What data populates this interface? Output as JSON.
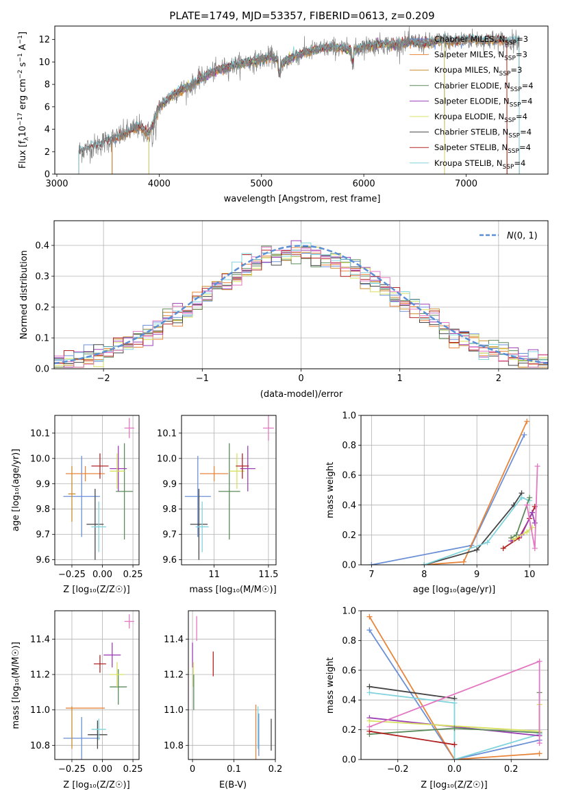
{
  "title": "PLATE=1749, MJD=53357, FIBERID=0613, z=0.209",
  "colors": {
    "chabrier_miles": "#6b8fd6",
    "salpeter_miles": "#e8843a",
    "kroupa_miles": "#c98a2a",
    "chabrier_elodie": "#5a8a5a",
    "salpeter_elodie": "#9b3fb5",
    "kroupa_elodie": "#d8e060",
    "chabrier_stelib": "#444444",
    "salpeter_stelib": "#b22222",
    "kroupa_stelib": "#7fd3dc",
    "pink": "#e377c2",
    "gauss": "#5a8fd6",
    "grid": "#b0b0b0"
  },
  "chart_data": [
    {
      "id": "spectrum",
      "type": "line",
      "xlabel": "wavelength [Angstrom, rest frame]",
      "ylabel": "Flux [f_λ 10^-17 erg cm^-2 s^-1 A^-1]",
      "xlim": [
        2980,
        7800
      ],
      "ylim": [
        0,
        13.2
      ],
      "xticks": [
        3000,
        4000,
        5000,
        6000,
        7000
      ],
      "yticks": [
        0,
        2,
        4,
        6,
        8,
        10,
        12
      ],
      "legend_position": "top-right",
      "legend": [
        "Chabrier MILES, N_SSP=3",
        "Salpeter MILES, N_SSP=3",
        "Kroupa MILES, N_SSP=3",
        "Chabrier ELODIE, N_SSP=4",
        "Salpeter ELODIE, N_SSP=4",
        "Kroupa ELODIE, N_SSP=4",
        "Chabrier STELIB, N_SSP=4",
        "Salpeter STELIB, N_SSP=4",
        "Kroupa STELIB, N_SSP=4"
      ],
      "data_continuum": {
        "x": [
          3200,
          3300,
          3400,
          3500,
          3600,
          3700,
          3800,
          3900,
          4000,
          4100,
          4200,
          4300,
          4400,
          4500,
          4600,
          4700,
          4800,
          4900,
          5000,
          5100,
          5200,
          5300,
          5400,
          5500,
          5600,
          5700,
          5800,
          5900,
          6000,
          6100,
          6200,
          6300,
          6400,
          6500,
          6600,
          6700,
          6800,
          6900,
          7000,
          7100,
          7200,
          7300,
          7400,
          7500
        ],
        "y": [
          2.0,
          2.3,
          2.6,
          3.0,
          3.3,
          3.8,
          4.2,
          3.6,
          6.0,
          6.8,
          7.5,
          7.8,
          8.5,
          9.0,
          9.4,
          9.6,
          9.9,
          10.0,
          10.2,
          10.5,
          9.8,
          10.4,
          10.8,
          11.0,
          11.2,
          11.3,
          11.2,
          11.0,
          11.4,
          11.5,
          11.6,
          11.5,
          11.7,
          11.8,
          11.6,
          11.8,
          11.9,
          11.8,
          12.0,
          12.0,
          11.9,
          12.0,
          11.8,
          11.9
        ]
      }
    },
    {
      "id": "residuals",
      "type": "line",
      "xlabel": "(data-model)/error",
      "ylabel": "Normed distribution",
      "xlim": [
        -2.5,
        2.5
      ],
      "ylim": [
        0,
        0.48
      ],
      "xticks": [
        -2,
        -1,
        0,
        1,
        2
      ],
      "yticks": [
        0.0,
        0.1,
        0.2,
        0.3,
        0.4
      ],
      "legend_position": "top-right",
      "legend": [
        "N(0,1)"
      ],
      "hist_bin_width": 0.1
    },
    {
      "id": "age_vs_Z",
      "type": "scatter",
      "xlabel": "Z [log10(Z/Z☉)]",
      "ylabel": "age [log10(age/yr)]",
      "xlim": [
        -0.39,
        0.3
      ],
      "ylim": [
        9.58,
        10.17
      ],
      "xticks": [
        -0.25,
        0.0,
        0.25
      ],
      "xticklabels": [
        "−0.25",
        "0.00",
        "0.25"
      ],
      "yticks": [
        9.6,
        9.7,
        9.8,
        9.9,
        10.0,
        10.1
      ],
      "points": [
        {
          "c": "chabrier_miles",
          "x": -0.17,
          "y": 9.85,
          "xerr": 0.15,
          "yerr": 0.16
        },
        {
          "c": "salpeter_miles",
          "x": -0.14,
          "y": 9.94,
          "xerr": 0.16,
          "yerr": 0.03
        },
        {
          "c": "kroupa_miles",
          "x": -0.25,
          "y": 9.86,
          "xerr": 0.03,
          "yerr": 0.11
        },
        {
          "c": "chabrier_elodie",
          "x": 0.18,
          "y": 9.87,
          "xerr": 0.07,
          "yerr": 0.19
        },
        {
          "c": "salpeter_elodie",
          "x": 0.13,
          "y": 9.96,
          "xerr": 0.07,
          "yerr": 0.09
        },
        {
          "c": "kroupa_elodie",
          "x": 0.12,
          "y": 9.95,
          "xerr": 0.06,
          "yerr": 0.07
        },
        {
          "c": "chabrier_stelib",
          "x": -0.06,
          "y": 9.74,
          "xerr": 0.07,
          "yerr": 0.14
        },
        {
          "c": "salpeter_stelib",
          "x": -0.02,
          "y": 9.97,
          "xerr": 0.07,
          "yerr": 0.05
        },
        {
          "c": "kroupa_stelib",
          "x": -0.03,
          "y": 9.73,
          "xerr": 0.06,
          "yerr": 0.1
        },
        {
          "c": "pink",
          "x": 0.22,
          "y": 10.12,
          "xerr": 0.04,
          "yerr": 0.04
        }
      ]
    },
    {
      "id": "age_vs_mass",
      "type": "scatter",
      "xlabel": "mass [log10(M/M☉)]",
      "ylabel": "",
      "xlim": [
        10.7,
        11.57
      ],
      "ylim": [
        9.58,
        10.17
      ],
      "xticks": [
        11.0,
        11.5
      ],
      "yticks": [
        9.6,
        9.7,
        9.8,
        9.9,
        10.0,
        10.1
      ],
      "points": [
        {
          "c": "chabrier_miles",
          "x": 10.85,
          "y": 9.85,
          "xerr": 0.12,
          "yerr": 0.16
        },
        {
          "c": "salpeter_miles",
          "x": 11.0,
          "y": 9.94,
          "xerr": 0.13,
          "yerr": 0.03
        },
        {
          "c": "chabrier_elodie",
          "x": 11.14,
          "y": 9.87,
          "xerr": 0.1,
          "yerr": 0.19
        },
        {
          "c": "salpeter_elodie",
          "x": 11.31,
          "y": 9.96,
          "xerr": 0.07,
          "yerr": 0.09
        },
        {
          "c": "kroupa_elodie",
          "x": 11.21,
          "y": 9.95,
          "xerr": 0.07,
          "yerr": 0.07
        },
        {
          "c": "chabrier_stelib",
          "x": 10.86,
          "y": 9.74,
          "xerr": 0.08,
          "yerr": 0.14
        },
        {
          "c": "salpeter_stelib",
          "x": 11.26,
          "y": 9.97,
          "xerr": 0.06,
          "yerr": 0.05
        },
        {
          "c": "kroupa_stelib",
          "x": 10.89,
          "y": 9.73,
          "xerr": 0.06,
          "yerr": 0.1
        },
        {
          "c": "pink",
          "x": 11.5,
          "y": 10.12,
          "xerr": 0.05,
          "yerr": 0.05
        }
      ]
    },
    {
      "id": "weight_vs_age",
      "type": "line",
      "xlabel": "age [log10(age/yr)]",
      "ylabel": "mass weight",
      "xlim": [
        6.8,
        10.35
      ],
      "ylim": [
        0,
        1.0
      ],
      "xticks": [
        7,
        8,
        9,
        10
      ],
      "yticks": [
        0.0,
        0.2,
        0.4,
        0.6,
        0.8,
        1.0
      ],
      "series": [
        {
          "c": "chabrier_miles",
          "x": [
            7.0,
            8.9,
            9.9
          ],
          "y": [
            0.0,
            0.13,
            0.87
          ]
        },
        {
          "c": "salpeter_miles",
          "x": [
            8.0,
            8.75,
            9.95
          ],
          "y": [
            0.0,
            0.02,
            0.96
          ]
        },
        {
          "c": "chabrier_stelib",
          "x": [
            8.0,
            9.0,
            9.7,
            9.85
          ],
          "y": [
            0.0,
            0.1,
            0.4,
            0.48
          ]
        },
        {
          "c": "kroupa_stelib",
          "x": [
            8.0,
            9.2,
            9.85,
            10.0
          ],
          "y": [
            0.0,
            0.15,
            0.45,
            0.43
          ]
        },
        {
          "c": "salpeter_stelib",
          "x": [
            9.5,
            9.8,
            10.0,
            10.1
          ],
          "y": [
            0.11,
            0.18,
            0.31,
            0.39
          ]
        },
        {
          "c": "chabrier_elodie",
          "x": [
            9.65,
            9.75,
            10.0
          ],
          "y": [
            0.18,
            0.2,
            0.45
          ]
        },
        {
          "c": "salpeter_elodie",
          "x": [
            9.65,
            9.85,
            10.05,
            10.1
          ],
          "y": [
            0.16,
            0.2,
            0.35,
            0.28
          ]
        },
        {
          "c": "kroupa_elodie",
          "x": [
            9.7,
            9.95,
            10.05
          ],
          "y": [
            0.17,
            0.22,
            0.25
          ]
        },
        {
          "c": "pink",
          "x": [
            9.95,
            10.1,
            10.15
          ],
          "y": [
            0.4,
            0.11,
            0.66
          ]
        }
      ]
    },
    {
      "id": "mass_vs_Z",
      "type": "scatter",
      "xlabel": "Z [log10(Z/Z☉)]",
      "ylabel": "mass [log10(M/M☉)]",
      "xlim": [
        -0.39,
        0.3
      ],
      "ylim": [
        10.72,
        11.56
      ],
      "xticks": [
        -0.25,
        0.0,
        0.25
      ],
      "xticklabels": [
        "−0.25",
        "0.00",
        "0.25"
      ],
      "yticks": [
        10.8,
        11.0,
        11.2,
        11.4
      ],
      "points": [
        {
          "c": "chabrier_miles",
          "x": -0.17,
          "y": 10.84,
          "xerr": 0.15,
          "yerr": 0.12
        },
        {
          "c": "salpeter_miles",
          "x": -0.14,
          "y": 11.01,
          "xerr": 0.16,
          "yerr": 0.0
        },
        {
          "c": "kroupa_miles",
          "x": -0.25,
          "y": 10.9,
          "xerr": 0.0,
          "yerr": 0.12
        },
        {
          "c": "chabrier_elodie",
          "x": 0.13,
          "y": 11.13,
          "xerr": 0.07,
          "yerr": 0.1
        },
        {
          "c": "salpeter_elodie",
          "x": 0.08,
          "y": 11.31,
          "xerr": 0.07,
          "yerr": 0.07
        },
        {
          "c": "kroupa_elodie",
          "x": 0.12,
          "y": 11.2,
          "xerr": 0.06,
          "yerr": 0.07
        },
        {
          "c": "chabrier_stelib",
          "x": -0.04,
          "y": 10.86,
          "xerr": 0.08,
          "yerr": 0.08
        },
        {
          "c": "salpeter_stelib",
          "x": -0.02,
          "y": 11.26,
          "xerr": 0.05,
          "yerr": 0.05
        },
        {
          "c": "kroupa_stelib",
          "x": -0.03,
          "y": 10.89,
          "xerr": 0.06,
          "yerr": 0.06
        },
        {
          "c": "pink",
          "x": 0.22,
          "y": 11.5,
          "xerr": 0.04,
          "yerr": 0.04
        }
      ]
    },
    {
      "id": "mass_vs_EBV",
      "type": "scatter",
      "xlabel": "E(B-V)",
      "ylabel": "",
      "xlim": [
        -0.01,
        0.2
      ],
      "ylim": [
        10.72,
        11.56
      ],
      "xticks": [
        0.0,
        0.1,
        0.2
      ],
      "yticks": [
        10.8,
        11.0,
        11.2,
        11.4
      ],
      "points": [
        {
          "c": "salpeter_elodie",
          "x": 0.0,
          "y": 11.31,
          "xerr": 0.0,
          "yerr": 0.07
        },
        {
          "c": "kroupa_elodie",
          "x": 0.002,
          "y": 11.2,
          "xerr": 0.0,
          "yerr": 0.07
        },
        {
          "c": "chabrier_elodie",
          "x": 0.003,
          "y": 11.1,
          "xerr": 0.0,
          "yerr": 0.1
        },
        {
          "c": "pink",
          "x": 0.01,
          "y": 11.46,
          "xerr": 0.0,
          "yerr": 0.07
        },
        {
          "c": "salpeter_stelib",
          "x": 0.05,
          "y": 11.26,
          "xerr": 0.0,
          "yerr": 0.07
        },
        {
          "c": "salpeter_miles",
          "x": 0.153,
          "y": 10.86,
          "xerr": 0.0,
          "yerr": 0.17
        },
        {
          "c": "kroupa_stelib",
          "x": 0.158,
          "y": 10.9,
          "xerr": 0.0,
          "yerr": 0.12
        },
        {
          "c": "chabrier_miles",
          "x": 0.16,
          "y": 10.86,
          "xerr": 0.0,
          "yerr": 0.12
        },
        {
          "c": "chabrier_stelib",
          "x": 0.19,
          "y": 10.86,
          "xerr": 0.0,
          "yerr": 0.09
        }
      ]
    },
    {
      "id": "weight_vs_Z",
      "type": "line",
      "xlabel": "Z [log10(Z/Z☉)]",
      "ylabel": "mass weight",
      "xlim": [
        -0.33,
        0.33
      ],
      "ylim": [
        0,
        1.0
      ],
      "xticks": [
        -0.2,
        0.0,
        0.2
      ],
      "xticklabels": [
        "−0.2",
        "0.0",
        "0.2"
      ],
      "yticks": [
        0.0,
        0.2,
        0.4,
        0.6,
        0.8,
        1.0
      ],
      "series": [
        {
          "c": "chabrier_miles",
          "x": [
            -0.3,
            0.0,
            0.3
          ],
          "y": [
            0.87,
            0.0,
            0.13
          ]
        },
        {
          "c": "salpeter_miles",
          "x": [
            -0.3,
            0.0,
            0.3
          ],
          "y": [
            0.96,
            0.0,
            0.04
          ]
        },
        {
          "c": "chabrier_stelib",
          "x": [
            -0.3,
            0.0
          ],
          "y": [
            0.49,
            0.41
          ]
        },
        {
          "c": "kroupa_stelib",
          "x": [
            -0.3,
            0.0,
            0.0,
            0.3
          ],
          "y": [
            0.45,
            0.38,
            0.0,
            0.17
          ]
        },
        {
          "c": "salpeter_elodie",
          "x": [
            -0.3,
            0.3
          ],
          "y": [
            0.28,
            0.16
          ]
        },
        {
          "c": "kroupa_elodie",
          "x": [
            -0.3,
            0.3,
            0.3
          ],
          "y": [
            0.26,
            0.19,
            0.37
          ]
        },
        {
          "c": "chabrier_elodie",
          "x": [
            -0.3,
            0.0,
            0.3,
            0.3
          ],
          "y": [
            0.17,
            0.21,
            0.18,
            0.45
          ]
        },
        {
          "c": "salpeter_stelib",
          "x": [
            -0.3,
            0.0
          ],
          "y": [
            0.19,
            0.1
          ]
        },
        {
          "c": "pink",
          "x": [
            -0.3,
            0.3,
            0.3
          ],
          "y": [
            0.22,
            0.66,
            0.11
          ]
        }
      ]
    }
  ]
}
